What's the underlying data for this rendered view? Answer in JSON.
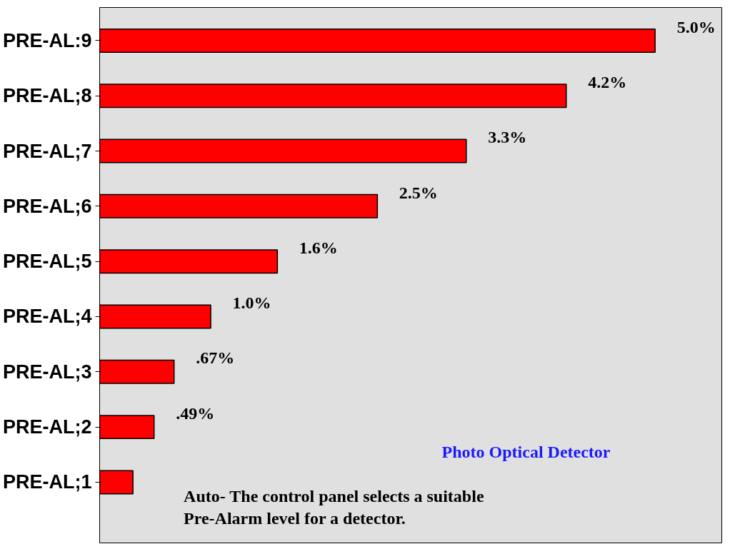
{
  "chart_data": {
    "type": "bar",
    "orientation": "horizontal",
    "categories": [
      "PRE-AL:9",
      "PRE-AL;8",
      "PRE-AL;7",
      "PRE-AL;6",
      "PRE-AL;5",
      "PRE-AL;4",
      "PRE-AL;3",
      "PRE-AL;2",
      "PRE-AL;1"
    ],
    "values": [
      5.0,
      4.2,
      3.3,
      2.5,
      1.6,
      1.0,
      0.67,
      0.49,
      0.3
    ],
    "value_labels": [
      "5.0%",
      "4.2%",
      "3.3%",
      "2.5%",
      "1.6%",
      "1.0%",
      ".67%",
      ".49%",
      null
    ],
    "color": "#ff0000",
    "xlim": [
      0,
      5.6
    ],
    "tick_labels": "y",
    "annotations": [
      "Photo Optical Detector",
      "Auto- The control panel selects a suitable Pre-Alarm level for a detector."
    ]
  }
}
